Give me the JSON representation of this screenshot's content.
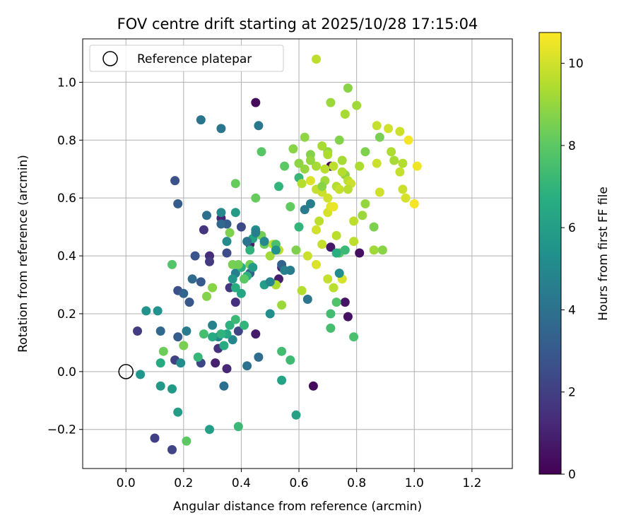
{
  "chart_data": {
    "type": "scatter",
    "title": "FOV centre drift starting at 2025/10/28 17:15:04",
    "xlabel": "Angular distance from reference (arcmin)",
    "ylabel": "Rotation from reference (arcmin)",
    "xlim": [
      -0.15,
      1.34
    ],
    "ylim": [
      -0.335,
      1.15
    ],
    "x_ticks": [
      0.0,
      0.2,
      0.4,
      0.6,
      0.8,
      1.0,
      1.2
    ],
    "x_tick_labels": [
      "0.0",
      "0.2",
      "0.4",
      "0.6",
      "0.8",
      "1.0",
      "1.2"
    ],
    "y_ticks": [
      -0.2,
      0.0,
      0.2,
      0.4,
      0.6,
      0.8,
      1.0
    ],
    "y_tick_labels": [
      "−0.2",
      "0.0",
      "0.2",
      "0.4",
      "0.6",
      "0.8",
      "1.0"
    ],
    "grid": true,
    "legend": {
      "position": "top-left",
      "entries": [
        "Reference platepar"
      ]
    },
    "reference_point": {
      "x": 0.0,
      "y": 0.0,
      "label": "Reference platepar"
    },
    "colorbar": {
      "label": "Hours from first FF file",
      "colormap": "viridis",
      "range": [
        0,
        10.75
      ],
      "ticks": [
        0,
        2,
        4,
        6,
        8,
        10
      ],
      "tick_labels": [
        "0",
        "2",
        "4",
        "6",
        "8",
        "10"
      ]
    },
    "points": [
      {
        "x": 0.45,
        "y": 0.93,
        "h": 0.3
      },
      {
        "x": 0.71,
        "y": 0.71,
        "h": 0.2
      },
      {
        "x": 0.81,
        "y": 0.41,
        "h": 0.4
      },
      {
        "x": 0.77,
        "y": 0.19,
        "h": 0.5
      },
      {
        "x": 0.76,
        "y": 0.24,
        "h": 0.6
      },
      {
        "x": 0.65,
        "y": -0.05,
        "h": 0.3
      },
      {
        "x": 0.71,
        "y": 0.43,
        "h": 0.7
      },
      {
        "x": 0.45,
        "y": 0.13,
        "h": 0.8
      },
      {
        "x": 0.53,
        "y": 0.32,
        "h": 0.9
      },
      {
        "x": 0.43,
        "y": 0.44,
        "h": 1.0
      },
      {
        "x": 0.33,
        "y": 0.53,
        "h": 1.1
      },
      {
        "x": 0.31,
        "y": 0.03,
        "h": 1.0
      },
      {
        "x": 0.35,
        "y": 0.01,
        "h": 1.2
      },
      {
        "x": 0.29,
        "y": 0.4,
        "h": 1.3
      },
      {
        "x": 0.54,
        "y": 0.36,
        "h": 1.2
      },
      {
        "x": 0.38,
        "y": 0.24,
        "h": 1.4
      },
      {
        "x": 0.32,
        "y": 0.08,
        "h": 1.5
      },
      {
        "x": 0.27,
        "y": 0.49,
        "h": 1.6
      },
      {
        "x": 0.36,
        "y": 0.29,
        "h": 1.7
      },
      {
        "x": 0.29,
        "y": 0.38,
        "h": 1.8
      },
      {
        "x": 0.04,
        "y": 0.14,
        "h": 1.9
      },
      {
        "x": 0.1,
        "y": -0.23,
        "h": 2.0
      },
      {
        "x": 0.16,
        "y": -0.27,
        "h": 2.2
      },
      {
        "x": 0.17,
        "y": 0.04,
        "h": 2.1
      },
      {
        "x": 0.26,
        "y": 0.03,
        "h": 2.3
      },
      {
        "x": 0.39,
        "y": 0.14,
        "h": 2.2
      },
      {
        "x": 0.4,
        "y": 0.5,
        "h": 2.4
      },
      {
        "x": 0.35,
        "y": 0.41,
        "h": 2.5
      },
      {
        "x": 0.18,
        "y": 0.28,
        "h": 2.6
      },
      {
        "x": 0.17,
        "y": 0.66,
        "h": 2.7
      },
      {
        "x": 0.24,
        "y": 0.4,
        "h": 2.8
      },
      {
        "x": 0.22,
        "y": 0.24,
        "h": 2.9
      },
      {
        "x": 0.26,
        "y": 0.31,
        "h": 3.0
      },
      {
        "x": 0.18,
        "y": 0.58,
        "h": 3.1
      },
      {
        "x": 0.35,
        "y": 0.51,
        "h": 3.2
      },
      {
        "x": 0.43,
        "y": 0.34,
        "h": 3.3
      },
      {
        "x": 0.54,
        "y": 0.37,
        "h": 3.4
      },
      {
        "x": 0.18,
        "y": 0.12,
        "h": 3.2
      },
      {
        "x": 0.2,
        "y": 0.27,
        "h": 3.5
      },
      {
        "x": 0.12,
        "y": 0.14,
        "h": 3.6
      },
      {
        "x": 0.23,
        "y": 0.32,
        "h": 3.7
      },
      {
        "x": 0.46,
        "y": 0.05,
        "h": 3.8
      },
      {
        "x": 0.34,
        "y": -0.05,
        "h": 3.9
      },
      {
        "x": 0.42,
        "y": 0.02,
        "h": 4.0
      },
      {
        "x": 0.26,
        "y": 0.87,
        "h": 4.1
      },
      {
        "x": 0.33,
        "y": 0.84,
        "h": 4.2
      },
      {
        "x": 0.46,
        "y": 0.85,
        "h": 4.3
      },
      {
        "x": 0.62,
        "y": 0.56,
        "h": 4.4
      },
      {
        "x": 0.64,
        "y": 0.58,
        "h": 4.5
      },
      {
        "x": 0.38,
        "y": 0.34,
        "h": 4.6
      },
      {
        "x": 0.3,
        "y": 0.16,
        "h": 4.7
      },
      {
        "x": 0.32,
        "y": 0.12,
        "h": 4.8
      },
      {
        "x": 0.37,
        "y": 0.11,
        "h": 4.9
      },
      {
        "x": 0.33,
        "y": 0.55,
        "h": 5.0
      },
      {
        "x": 0.35,
        "y": 0.45,
        "h": 5.1
      },
      {
        "x": 0.45,
        "y": 0.49,
        "h": 5.2
      },
      {
        "x": 0.5,
        "y": 0.2,
        "h": 5.3
      },
      {
        "x": 0.11,
        "y": 0.21,
        "h": 5.4
      },
      {
        "x": 0.07,
        "y": 0.21,
        "h": 5.5
      },
      {
        "x": 0.05,
        "y": -0.01,
        "h": 5.6
      },
      {
        "x": 0.12,
        "y": -0.05,
        "h": 5.7
      },
      {
        "x": 0.16,
        "y": -0.06,
        "h": 5.8
      },
      {
        "x": 0.18,
        "y": -0.14,
        "h": 5.9
      },
      {
        "x": 0.29,
        "y": -0.2,
        "h": 6.0
      },
      {
        "x": 0.59,
        "y": -0.15,
        "h": 6.1
      },
      {
        "x": 0.54,
        "y": -0.03,
        "h": 6.2
      },
      {
        "x": 0.48,
        "y": 0.3,
        "h": 6.0
      },
      {
        "x": 0.4,
        "y": 0.27,
        "h": 6.3
      },
      {
        "x": 0.35,
        "y": 0.13,
        "h": 6.4
      },
      {
        "x": 0.3,
        "y": 0.12,
        "h": 6.5
      },
      {
        "x": 0.34,
        "y": 0.09,
        "h": 6.6
      },
      {
        "x": 0.4,
        "y": 0.36,
        "h": 6.7
      },
      {
        "x": 0.42,
        "y": 0.33,
        "h": 6.8
      },
      {
        "x": 0.43,
        "y": 0.42,
        "h": 6.9
      },
      {
        "x": 0.53,
        "y": 0.64,
        "h": 7.0
      },
      {
        "x": 0.6,
        "y": 0.67,
        "h": 7.1
      },
      {
        "x": 0.6,
        "y": 0.5,
        "h": 7.0
      },
      {
        "x": 0.39,
        "y": -0.19,
        "h": 7.2
      },
      {
        "x": 0.57,
        "y": 0.04,
        "h": 7.3
      },
      {
        "x": 0.54,
        "y": 0.07,
        "h": 7.4
      },
      {
        "x": 0.71,
        "y": 0.15,
        "h": 7.5
      },
      {
        "x": 0.71,
        "y": 0.2,
        "h": 7.4
      },
      {
        "x": 0.79,
        "y": 0.12,
        "h": 7.6
      },
      {
        "x": 0.73,
        "y": 0.24,
        "h": 7.7
      },
      {
        "x": 0.74,
        "y": 0.41,
        "h": 7.8
      },
      {
        "x": 0.47,
        "y": 0.76,
        "h": 7.9
      },
      {
        "x": 0.55,
        "y": 0.71,
        "h": 8.0
      },
      {
        "x": 0.57,
        "y": 0.57,
        "h": 8.1
      },
      {
        "x": 0.45,
        "y": 0.6,
        "h": 8.2
      },
      {
        "x": 0.48,
        "y": 0.44,
        "h": 8.3
      },
      {
        "x": 0.47,
        "y": 0.47,
        "h": 8.4
      },
      {
        "x": 0.38,
        "y": 0.65,
        "h": 8.2
      },
      {
        "x": 0.37,
        "y": 0.37,
        "h": 8.5
      },
      {
        "x": 0.43,
        "y": 0.37,
        "h": 8.4
      },
      {
        "x": 0.36,
        "y": 0.48,
        "h": 8.6
      },
      {
        "x": 0.28,
        "y": 0.26,
        "h": 8.7
      },
      {
        "x": 0.3,
        "y": 0.29,
        "h": 8.8
      },
      {
        "x": 0.2,
        "y": 0.09,
        "h": 8.5
      },
      {
        "x": 0.13,
        "y": 0.07,
        "h": 8.3
      },
      {
        "x": 0.21,
        "y": -0.24,
        "h": 8.0
      },
      {
        "x": 0.16,
        "y": 0.37,
        "h": 7.8
      },
      {
        "x": 0.59,
        "y": 0.42,
        "h": 8.6
      },
      {
        "x": 0.64,
        "y": 0.75,
        "h": 8.7
      },
      {
        "x": 0.58,
        "y": 0.77,
        "h": 8.8
      },
      {
        "x": 0.62,
        "y": 0.81,
        "h": 8.9
      },
      {
        "x": 0.7,
        "y": 0.76,
        "h": 9.0
      },
      {
        "x": 0.71,
        "y": 0.93,
        "h": 9.1
      },
      {
        "x": 0.77,
        "y": 0.98,
        "h": 8.8
      },
      {
        "x": 0.8,
        "y": 0.92,
        "h": 9.2
      },
      {
        "x": 0.76,
        "y": 0.89,
        "h": 9.3
      },
      {
        "x": 0.74,
        "y": 0.8,
        "h": 8.7
      },
      {
        "x": 0.83,
        "y": 0.76,
        "h": 8.6
      },
      {
        "x": 0.81,
        "y": 0.71,
        "h": 9.4
      },
      {
        "x": 0.76,
        "y": 0.68,
        "h": 8.9
      },
      {
        "x": 0.73,
        "y": 0.64,
        "h": 9.5
      },
      {
        "x": 0.77,
        "y": 0.66,
        "h": 9.6
      },
      {
        "x": 0.83,
        "y": 0.58,
        "h": 9.0
      },
      {
        "x": 0.82,
        "y": 0.54,
        "h": 9.1
      },
      {
        "x": 0.79,
        "y": 0.52,
        "h": 9.7
      },
      {
        "x": 0.86,
        "y": 0.5,
        "h": 8.6
      },
      {
        "x": 0.86,
        "y": 0.42,
        "h": 9.2
      },
      {
        "x": 0.89,
        "y": 0.42,
        "h": 8.8
      },
      {
        "x": 0.88,
        "y": 0.81,
        "h": 8.5
      },
      {
        "x": 0.87,
        "y": 0.85,
        "h": 9.8
      },
      {
        "x": 0.91,
        "y": 0.84,
        "h": 10.0
      },
      {
        "x": 0.95,
        "y": 0.83,
        "h": 9.9
      },
      {
        "x": 0.98,
        "y": 0.8,
        "h": 10.6
      },
      {
        "x": 0.92,
        "y": 0.76,
        "h": 9.4
      },
      {
        "x": 0.93,
        "y": 0.73,
        "h": 9.3
      },
      {
        "x": 0.96,
        "y": 0.72,
        "h": 9.5
      },
      {
        "x": 0.95,
        "y": 0.69,
        "h": 9.8
      },
      {
        "x": 1.01,
        "y": 0.71,
        "h": 10.5
      },
      {
        "x": 0.96,
        "y": 0.63,
        "h": 9.9
      },
      {
        "x": 0.97,
        "y": 0.6,
        "h": 10.1
      },
      {
        "x": 1.0,
        "y": 0.58,
        "h": 10.6
      },
      {
        "x": 0.88,
        "y": 0.62,
        "h": 10.0
      },
      {
        "x": 0.87,
        "y": 0.72,
        "h": 9.9
      },
      {
        "x": 0.79,
        "y": 0.45,
        "h": 9.7
      },
      {
        "x": 0.75,
        "y": 0.32,
        "h": 10.1
      },
      {
        "x": 0.72,
        "y": 0.29,
        "h": 9.6
      },
      {
        "x": 0.7,
        "y": 0.32,
        "h": 9.8
      },
      {
        "x": 0.66,
        "y": 0.37,
        "h": 10.2
      },
      {
        "x": 0.63,
        "y": 0.4,
        "h": 9.9
      },
      {
        "x": 0.61,
        "y": 0.28,
        "h": 9.5
      },
      {
        "x": 0.68,
        "y": 0.44,
        "h": 9.8
      },
      {
        "x": 0.66,
        "y": 0.49,
        "h": 10.0
      },
      {
        "x": 0.7,
        "y": 0.55,
        "h": 10.1
      },
      {
        "x": 0.71,
        "y": 0.57,
        "h": 10.3
      },
      {
        "x": 0.72,
        "y": 0.57,
        "h": 10.4
      },
      {
        "x": 0.67,
        "y": 0.52,
        "h": 9.7
      },
      {
        "x": 0.73,
        "y": 0.47,
        "h": 9.6
      },
      {
        "x": 0.66,
        "y": 0.63,
        "h": 9.8
      },
      {
        "x": 0.68,
        "y": 0.62,
        "h": 9.9
      },
      {
        "x": 0.7,
        "y": 0.6,
        "h": 10.0
      },
      {
        "x": 0.64,
        "y": 0.66,
        "h": 10.2
      },
      {
        "x": 0.61,
        "y": 0.65,
        "h": 9.5
      },
      {
        "x": 0.69,
        "y": 0.7,
        "h": 9.6
      },
      {
        "x": 0.7,
        "y": 0.75,
        "h": 9.4
      },
      {
        "x": 0.68,
        "y": 0.78,
        "h": 9.3
      },
      {
        "x": 0.72,
        "y": 0.71,
        "h": 9.7
      },
      {
        "x": 0.66,
        "y": 1.08,
        "h": 9.7
      },
      {
        "x": 0.75,
        "y": 0.73,
        "h": 9.3
      },
      {
        "x": 0.75,
        "y": 0.69,
        "h": 9.5
      },
      {
        "x": 0.78,
        "y": 0.65,
        "h": 9.9
      },
      {
        "x": 0.74,
        "y": 0.63,
        "h": 9.8
      },
      {
        "x": 0.77,
        "y": 0.63,
        "h": 9.6
      },
      {
        "x": 0.69,
        "y": 0.66,
        "h": 9.2
      },
      {
        "x": 0.51,
        "y": 0.44,
        "h": 9.8
      },
      {
        "x": 0.53,
        "y": 0.42,
        "h": 9.6
      },
      {
        "x": 0.52,
        "y": 0.3,
        "h": 9.4
      },
      {
        "x": 0.54,
        "y": 0.23,
        "h": 9.1
      },
      {
        "x": 0.5,
        "y": 0.4,
        "h": 9.2
      },
      {
        "x": 0.62,
        "y": 0.7,
        "h": 9.0
      },
      {
        "x": 0.6,
        "y": 0.72,
        "h": 8.9
      },
      {
        "x": 0.66,
        "y": 0.71,
        "h": 9.3
      },
      {
        "x": 0.64,
        "y": 0.73,
        "h": 9.0
      },
      {
        "x": 0.68,
        "y": 0.64,
        "h": 8.8
      },
      {
        "x": 0.39,
        "y": 0.37,
        "h": 8.4
      },
      {
        "x": 0.41,
        "y": 0.32,
        "h": 8.0
      },
      {
        "x": 0.52,
        "y": 0.44,
        "h": 7.6
      },
      {
        "x": 0.38,
        "y": 0.29,
        "h": 6.6
      },
      {
        "x": 0.44,
        "y": 0.46,
        "h": 6.2
      },
      {
        "x": 0.37,
        "y": 0.32,
        "h": 5.6
      },
      {
        "x": 0.38,
        "y": 0.55,
        "h": 5.9
      },
      {
        "x": 0.44,
        "y": 0.36,
        "h": 5.8
      },
      {
        "x": 0.5,
        "y": 0.31,
        "h": 4.9
      },
      {
        "x": 0.55,
        "y": 0.35,
        "h": 4.7
      },
      {
        "x": 0.48,
        "y": 0.45,
        "h": 5.0
      },
      {
        "x": 0.52,
        "y": 0.42,
        "h": 5.5
      },
      {
        "x": 0.36,
        "y": 0.16,
        "h": 6.8
      },
      {
        "x": 0.38,
        "y": 0.18,
        "h": 7.2
      },
      {
        "x": 0.41,
        "y": 0.16,
        "h": 7.0
      },
      {
        "x": 0.33,
        "y": 0.13,
        "h": 6.9
      },
      {
        "x": 0.27,
        "y": 0.13,
        "h": 7.5
      },
      {
        "x": 0.25,
        "y": 0.05,
        "h": 7.1
      },
      {
        "x": 0.12,
        "y": 0.03,
        "h": 6.5
      },
      {
        "x": 0.19,
        "y": 0.03,
        "h": 5.2
      },
      {
        "x": 0.21,
        "y": 0.14,
        "h": 4.4
      },
      {
        "x": 0.28,
        "y": 0.54,
        "h": 3.9
      },
      {
        "x": 0.33,
        "y": 0.51,
        "h": 3.6
      },
      {
        "x": 0.42,
        "y": 0.45,
        "h": 4.1
      },
      {
        "x": 0.45,
        "y": 0.48,
        "h": 4.6
      },
      {
        "x": 0.57,
        "y": 0.35,
        "h": 4.5
      },
      {
        "x": 0.63,
        "y": 0.25,
        "h": 4.2
      },
      {
        "x": 0.74,
        "y": 0.34,
        "h": 5.2
      },
      {
        "x": 0.73,
        "y": 0.41,
        "h": 6.7
      },
      {
        "x": 0.76,
        "y": 0.42,
        "h": 7.2
      }
    ]
  }
}
